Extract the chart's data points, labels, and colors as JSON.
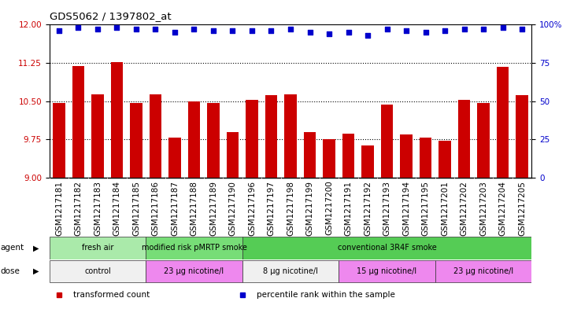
{
  "title": "GDS5062 / 1397802_at",
  "samples": [
    "GSM1217181",
    "GSM1217182",
    "GSM1217183",
    "GSM1217184",
    "GSM1217185",
    "GSM1217186",
    "GSM1217187",
    "GSM1217188",
    "GSM1217189",
    "GSM1217190",
    "GSM1217196",
    "GSM1217197",
    "GSM1217198",
    "GSM1217199",
    "GSM1217200",
    "GSM1217191",
    "GSM1217192",
    "GSM1217193",
    "GSM1217194",
    "GSM1217195",
    "GSM1217201",
    "GSM1217202",
    "GSM1217203",
    "GSM1217204",
    "GSM1217205"
  ],
  "bar_values": [
    10.47,
    11.19,
    10.64,
    11.26,
    10.47,
    10.63,
    9.78,
    10.5,
    10.46,
    9.9,
    10.52,
    10.62,
    10.63,
    9.9,
    9.75,
    9.87,
    9.63,
    10.44,
    9.85,
    9.79,
    9.72,
    10.52,
    10.46,
    11.18,
    10.62
  ],
  "scatter_values": [
    96,
    98,
    97,
    98,
    97,
    97,
    95,
    97,
    96,
    96,
    96,
    96,
    97,
    95,
    94,
    95,
    93,
    97,
    96,
    95,
    96,
    97,
    97,
    98,
    97
  ],
  "ylim_left": [
    9,
    12
  ],
  "ylim_right": [
    0,
    100
  ],
  "yticks_left": [
    9,
    9.75,
    10.5,
    11.25,
    12
  ],
  "yticks_right": [
    0,
    25,
    50,
    75,
    100
  ],
  "ytick_labels_right": [
    "0",
    "25",
    "50",
    "75",
    "100%"
  ],
  "bar_color": "#cc0000",
  "scatter_color": "#0000cc",
  "plot_bg_color": "#ffffff",
  "tick_area_bg": "#d8d8d8",
  "agent_groups": [
    {
      "label": "fresh air",
      "start": 0,
      "end": 5,
      "color": "#aaeaaa"
    },
    {
      "label": "modified risk pMRTP smoke",
      "start": 5,
      "end": 10,
      "color": "#77dd77"
    },
    {
      "label": "conventional 3R4F smoke",
      "start": 10,
      "end": 25,
      "color": "#55cc55"
    }
  ],
  "dose_groups": [
    {
      "label": "control",
      "start": 0,
      "end": 5,
      "color": "#f0f0f0"
    },
    {
      "label": "23 μg nicotine/l",
      "start": 5,
      "end": 10,
      "color": "#ee88ee"
    },
    {
      "label": "8 μg nicotine/l",
      "start": 10,
      "end": 15,
      "color": "#f0f0f0"
    },
    {
      "label": "15 μg nicotine/l",
      "start": 15,
      "end": 20,
      "color": "#ee88ee"
    },
    {
      "label": "23 μg nicotine/l",
      "start": 20,
      "end": 25,
      "color": "#ee88ee"
    }
  ],
  "legend_items": [
    {
      "label": "transformed count",
      "color": "#cc0000"
    },
    {
      "label": "percentile rank within the sample",
      "color": "#0000cc"
    }
  ],
  "hgrid_values": [
    9.75,
    10.5,
    11.25
  ],
  "label_fontsize": 7.5,
  "tick_fontsize": 7.5
}
